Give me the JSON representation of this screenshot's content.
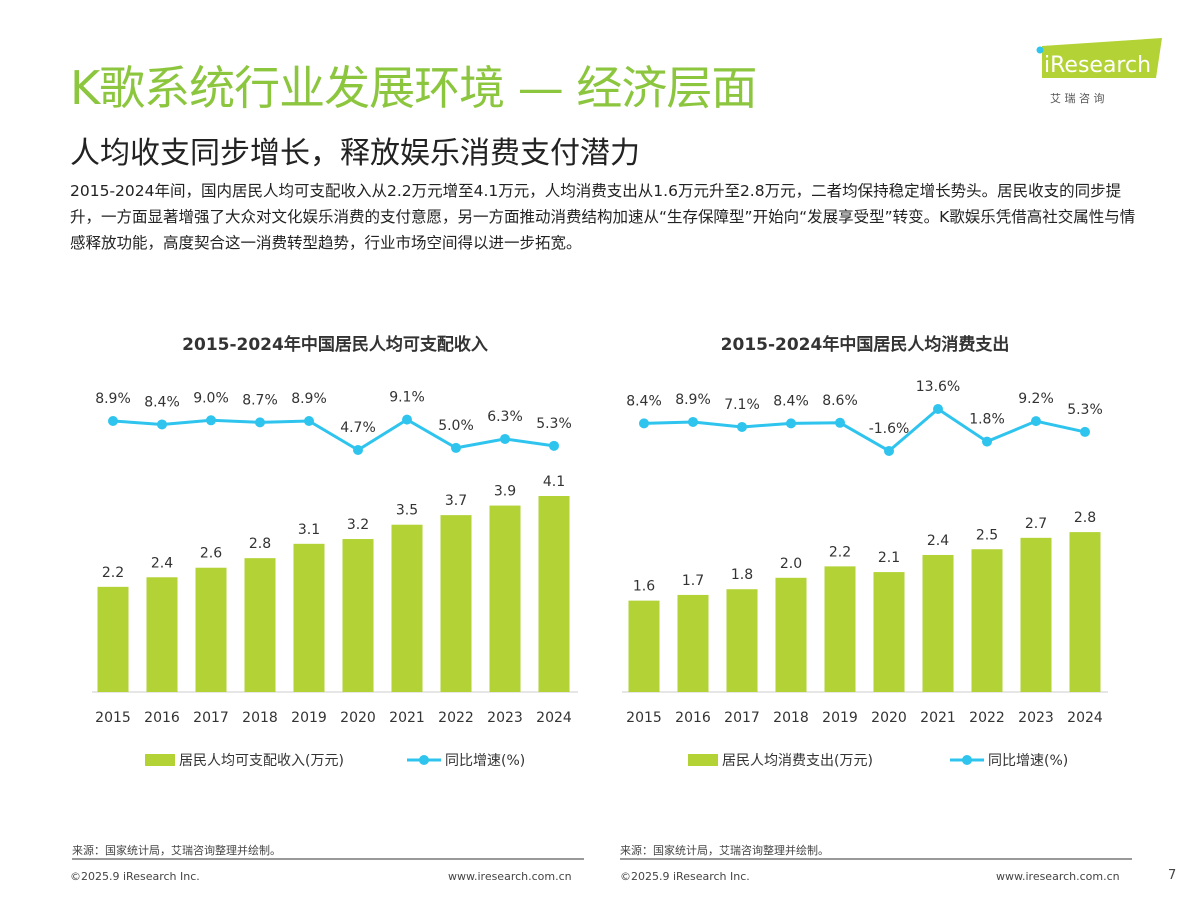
{
  "header": {
    "title": "K歌系统行业发展环境 — 经济层面",
    "subtitle": "人均收支同步增长，释放娱乐消费支付潜力",
    "body": "2015-2024年间，国内居民人均可支配收入从2.2万元增至4.1万元，人均消费支出从1.6万元升至2.8万元，二者均保持稳定增长势头。居民收支的同步提升，一方面显著增强了大众对文化娱乐消费的支付意愿，另一方面推动消费结构加速从“生存保障型”开始向“发展享受型”转变。K歌娱乐凭借高社交属性与情感释放功能，高度契合这一消费转型趋势，行业市场空间得以进一步拓宽。",
    "logo_text": "iResearch",
    "logo_sub": "艾 瑞 咨 询"
  },
  "colors": {
    "bar": "#b2d235",
    "line": "#2ec4ee",
    "title": "#8cc63f"
  },
  "chart_data": [
    {
      "type": "bar+line",
      "title": "2015-2024年中国居民人均可支配收入",
      "categories": [
        "2015",
        "2016",
        "2017",
        "2018",
        "2019",
        "2020",
        "2021",
        "2022",
        "2023",
        "2024"
      ],
      "series": [
        {
          "name": "居民人均可支配收入(万元)",
          "type": "bar",
          "values": [
            2.2,
            2.4,
            2.6,
            2.8,
            3.1,
            3.2,
            3.5,
            3.7,
            3.9,
            4.1
          ],
          "labels": [
            "2.2",
            "2.4",
            "2.6",
            "2.8",
            "3.1",
            "3.2",
            "3.5",
            "3.7",
            "3.9",
            "4.1"
          ]
        },
        {
          "name": "同比增速(%)",
          "type": "line",
          "values": [
            8.9,
            8.4,
            9.0,
            8.7,
            8.9,
            4.7,
            9.1,
            5.0,
            6.3,
            5.3
          ],
          "labels": [
            "8.9%",
            "8.4%",
            "9.0%",
            "8.7%",
            "8.9%",
            "4.7%",
            "9.1%",
            "5.0%",
            "6.3%",
            "5.3%"
          ]
        }
      ],
      "legend": "bottom",
      "source": "来源：国家统计局，艾瑞咨询整理并绘制。"
    },
    {
      "type": "bar+line",
      "title": "2015-2024年中国居民人均消费支出",
      "categories": [
        "2015",
        "2016",
        "2017",
        "2018",
        "2019",
        "2020",
        "2021",
        "2022",
        "2023",
        "2024"
      ],
      "series": [
        {
          "name": "居民人均消费支出(万元)",
          "type": "bar",
          "values": [
            1.6,
            1.7,
            1.8,
            2.0,
            2.2,
            2.1,
            2.4,
            2.5,
            2.7,
            2.8
          ],
          "labels": [
            "1.6",
            "1.7",
            "1.8",
            "2.0",
            "2.2",
            "2.1",
            "2.4",
            "2.5",
            "2.7",
            "2.8"
          ]
        },
        {
          "name": "同比增速(%)",
          "type": "line",
          "values": [
            8.4,
            8.9,
            7.1,
            8.4,
            8.6,
            -1.6,
            13.6,
            1.8,
            9.2,
            5.3
          ],
          "labels": [
            "8.4%",
            "8.9%",
            "7.1%",
            "8.4%",
            "8.6%",
            "-1.6%",
            "13.6%",
            "1.8%",
            "9.2%",
            "5.3%"
          ]
        }
      ],
      "legend": "bottom",
      "source": "来源：国家统计局，艾瑞咨询整理并绘制。"
    }
  ],
  "footer": {
    "copyright": "©2025.9 iResearch Inc.",
    "url": "www.iresearch.com.cn",
    "page": "7"
  }
}
